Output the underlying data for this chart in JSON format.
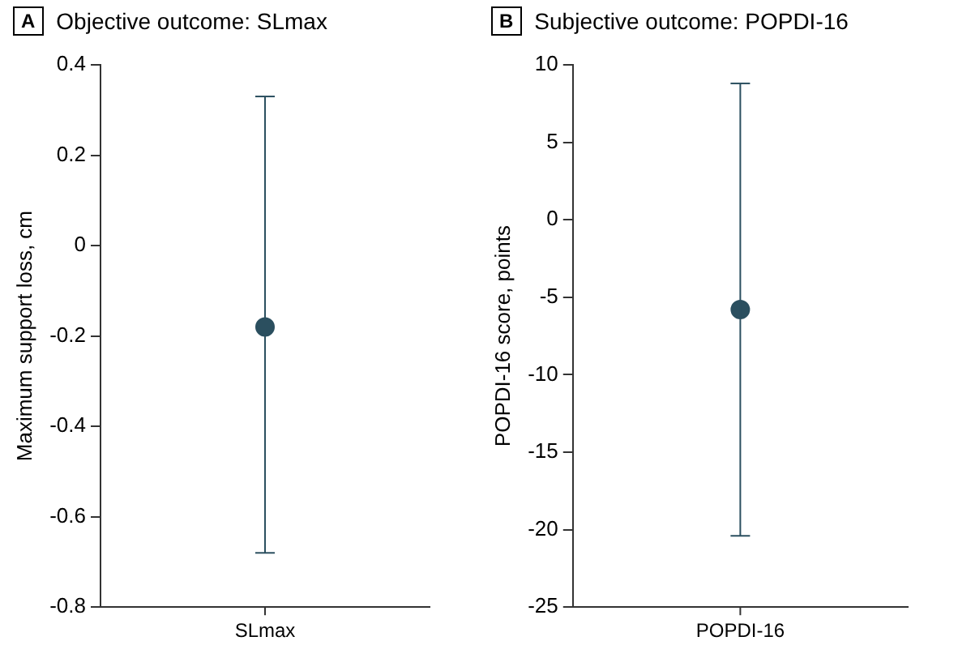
{
  "chart_data": [
    {
      "type": "scatter",
      "title": "Objective outcome: SLmax",
      "annotations": [
        "A"
      ],
      "ylabel": "Maximum support loss, cm",
      "categories": [
        "SLmax"
      ],
      "series": [
        {
          "color": "#2b4f5f",
          "values": [
            -0.18
          ],
          "errors": [
            [
              -0.68,
              0.33
            ]
          ]
        }
      ],
      "ylim": [
        -0.8,
        0.4
      ],
      "yticks": [
        {
          "value": -0.8,
          "label": "-0.8"
        },
        {
          "value": -0.6,
          "label": "-0.6"
        },
        {
          "value": -0.4,
          "label": "-0.4"
        },
        {
          "value": -0.2,
          "label": "-0.2"
        },
        0,
        0.2,
        0.4
      ],
      "grid": false,
      "legend": false,
      "marker": "circle"
    },
    {
      "type": "scatter",
      "title": "Subjective outcome: POPDI-16",
      "annotations": [
        "B"
      ],
      "ylabel": "POPDI-16 score, points",
      "categories": [
        "POPDI-16"
      ],
      "series": [
        {
          "color": "#2b4f5f",
          "values": [
            -5.8
          ],
          "errors": [
            [
              -20.4,
              8.8
            ]
          ]
        }
      ],
      "ylim": [
        -25,
        10
      ],
      "yticks": [
        {
          "value": -25,
          "label": "-25"
        },
        {
          "value": -20,
          "label": "-20"
        },
        {
          "value": -15,
          "label": "-15"
        },
        {
          "value": -10,
          "label": "-10"
        },
        {
          "value": -5,
          "label": "-5"
        },
        0,
        5,
        10
      ],
      "grid": false,
      "legend": false,
      "marker": "circle"
    }
  ]
}
